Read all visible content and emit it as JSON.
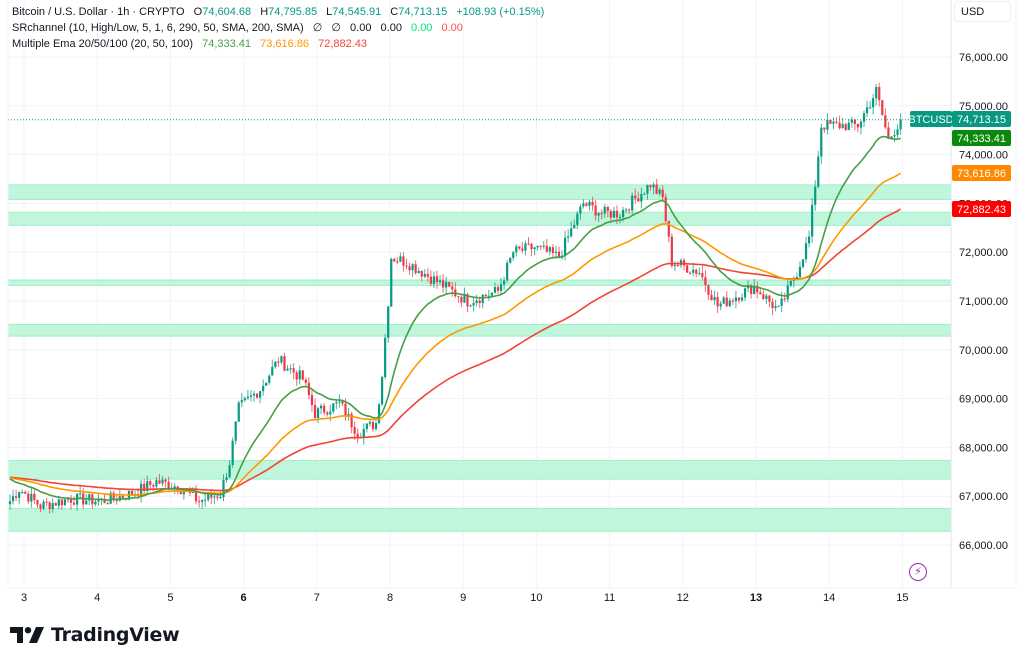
{
  "header": {
    "symbol_title": "Bitcoin / U.S. Dollar · 1h · CRYPTO",
    "open_label": "O",
    "open": "74,604.68",
    "high_label": "H",
    "high": "74,795.85",
    "low_label": "L",
    "low": "74,545.91",
    "close_label": "C",
    "close": "74,713.15",
    "change": "+108.93 (+0.15%)",
    "indicator1_title": "SRchannel (10, High/Low, 5, 1, 6, 290, 50, SMA, 200, SMA)",
    "indicator1_values": [
      "∅",
      "∅",
      "0.00",
      "0.00",
      "0.00",
      "0.00"
    ],
    "indicator2_title": "Multiple Ema 20/50/100 (20, 50, 100)",
    "indicator2_values": [
      "74,333.41",
      "73,616.86",
      "72,882.43"
    ]
  },
  "currency_label": "USD",
  "brand": {
    "name": "TradingView",
    "logo_icon": "tradingview-logo-icon"
  },
  "bolt_icon": "lightning-bolt-icon",
  "colors": {
    "up": "#089981",
    "down": "#f23645",
    "ema20": "#43a047",
    "ema50": "#ff9800",
    "ema100": "#f44336",
    "zone_fill": "#bff6dc",
    "zone_border": "#9ef0c7",
    "grid": "#f0f3fa",
    "text_pos": "#089981",
    "ind_green": "#00e676",
    "ind_red": "#ff5252"
  },
  "chart_data": {
    "type": "candlestick",
    "title": "Bitcoin / U.S. Dollar · 1h · CRYPTO",
    "symbol": "BTCUSD",
    "xlabel": "",
    "ylabel": "USD",
    "ylim": [
      65700,
      76800
    ],
    "yticks": [
      66000,
      67000,
      68000,
      69000,
      70000,
      71000,
      72000,
      73000,
      74000,
      75000,
      76000
    ],
    "ytick_labels": [
      "66,000.00",
      "67,000.00",
      "68,000.00",
      "69,000.00",
      "70,000.00",
      "71,000.00",
      "72,000.00",
      "73,000.00",
      "74,000.00",
      "75,000.00",
      "76,000.00"
    ],
    "xticks": [
      3,
      4,
      5,
      6,
      7,
      8,
      9,
      10,
      11,
      12,
      13,
      14,
      15
    ],
    "xtick_labels": [
      "3",
      "4",
      "5",
      "6",
      "7",
      "8",
      "9",
      "10",
      "11",
      "12",
      "13",
      "14",
      "15"
    ],
    "xtick_bold": [
      "6",
      "13"
    ],
    "grid": true,
    "support_resistance_zones": [
      {
        "low": 73080,
        "high": 73380
      },
      {
        "low": 72550,
        "high": 72820
      },
      {
        "low": 71320,
        "high": 71430
      },
      {
        "low": 70280,
        "high": 70520
      },
      {
        "low": 67350,
        "high": 67730
      },
      {
        "low": 66280,
        "high": 66750
      }
    ],
    "price_path_keypoints": [
      [
        0,
        66900
      ],
      [
        3,
        67150
      ],
      [
        10,
        66800
      ],
      [
        20,
        66950
      ],
      [
        30,
        66900
      ],
      [
        40,
        67050
      ],
      [
        48,
        67300
      ],
      [
        55,
        67200
      ],
      [
        62,
        66900
      ],
      [
        69,
        67050
      ],
      [
        72,
        67700
      ],
      [
        75,
        68800
      ],
      [
        82,
        69200
      ],
      [
        88,
        69800
      ],
      [
        96,
        69400
      ],
      [
        100,
        68700
      ],
      [
        108,
        68900
      ],
      [
        114,
        68300
      ],
      [
        120,
        68500
      ],
      [
        122,
        69500
      ],
      [
        124,
        71000
      ],
      [
        125,
        71900
      ],
      [
        130,
        71800
      ],
      [
        140,
        71400
      ],
      [
        150,
        71000
      ],
      [
        160,
        71200
      ],
      [
        165,
        72000
      ],
      [
        172,
        72100
      ],
      [
        180,
        71900
      ],
      [
        188,
        73000
      ],
      [
        194,
        72800
      ],
      [
        200,
        72800
      ],
      [
        210,
        73400
      ],
      [
        214,
        73100
      ],
      [
        217,
        71800
      ],
      [
        226,
        71600
      ],
      [
        232,
        70900
      ],
      [
        244,
        71300
      ],
      [
        252,
        70800
      ],
      [
        258,
        71600
      ],
      [
        262,
        72300
      ],
      [
        264,
        73400
      ],
      [
        266,
        74600
      ],
      [
        278,
        74600
      ],
      [
        284,
        75300
      ],
      [
        288,
        74300
      ],
      [
        292,
        74713
      ]
    ],
    "series": [
      {
        "name": "EMA 20",
        "last": 74333.41,
        "color": "#43a047"
      },
      {
        "name": "EMA 50",
        "last": 73616.86,
        "color": "#ff9800"
      },
      {
        "name": "EMA 100",
        "last": 72882.43,
        "color": "#f44336"
      }
    ],
    "last_price": 74713.15,
    "price_tags": [
      {
        "label": "BTCUSD",
        "value": "74,713.15",
        "price": 74713.15,
        "color": "#089981"
      },
      {
        "value": "74,333.41",
        "price": 74333.41,
        "color": "#0a8a0a"
      },
      {
        "value": "73,616.86",
        "price": 73616.86,
        "color": "#ff8800"
      },
      {
        "value": "72,882.43",
        "price": 72882.43,
        "color": "#ff0000"
      }
    ],
    "legend": [
      "Bitcoin / U.S. Dollar",
      "SRchannel",
      "Multiple Ema 20/50/100"
    ]
  }
}
